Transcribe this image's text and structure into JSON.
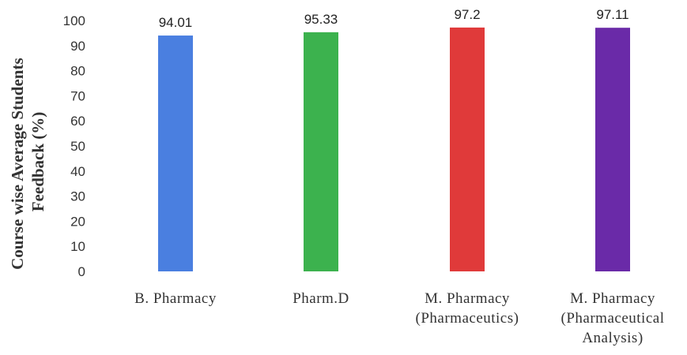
{
  "chart_data": {
    "type": "bar",
    "categories": [
      [
        "B. Pharmacy"
      ],
      [
        "Pharm.D"
      ],
      [
        "M. Pharmacy",
        "(Pharmaceutics)"
      ],
      [
        "M. Pharmacy",
        "(Pharmaceutical",
        "Analysis)"
      ]
    ],
    "values": [
      94.01,
      95.33,
      97.2,
      97.11
    ],
    "value_labels": [
      "94.01",
      "95.33",
      "97.2",
      "97.11"
    ],
    "bar_colors": [
      "#4a7fe0",
      "#3cb24e",
      "#e03a3a",
      "#6a2aa8"
    ],
    "ylabel_lines": [
      "Course wise Average Students",
      "Feedback (%)"
    ],
    "ylim": [
      0,
      100
    ],
    "yticks": [
      "0",
      "10",
      "20",
      "30",
      "40",
      "50",
      "60",
      "70",
      "80",
      "90",
      "100"
    ],
    "grid": false,
    "legend": "none"
  }
}
